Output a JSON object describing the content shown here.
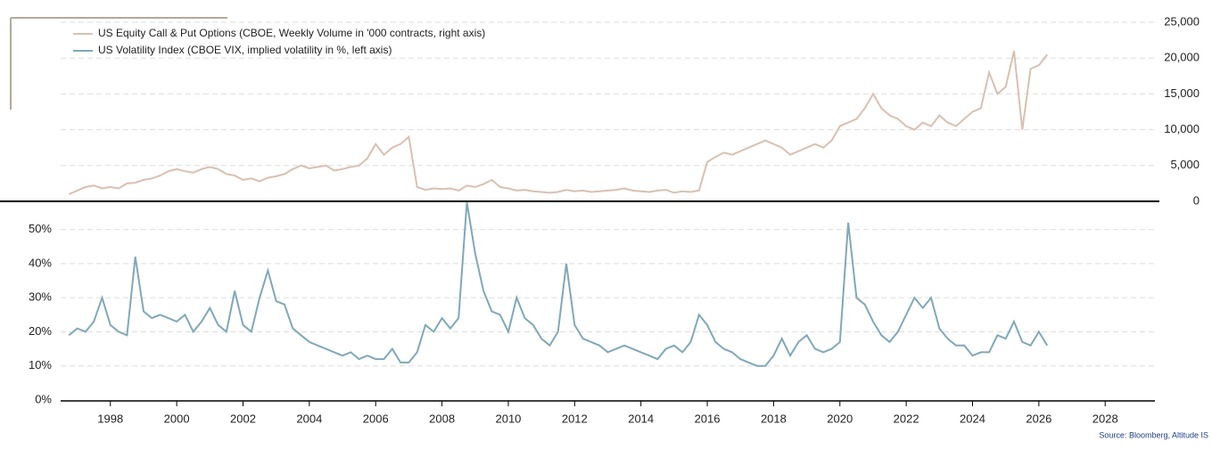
{
  "chart_data": {
    "type": "line",
    "source": "Source: Bloomberg, Altitude IS",
    "x": [
      1996.75,
      1997,
      1997.25,
      1997.5,
      1997.75,
      1998,
      1998.25,
      1998.5,
      1998.75,
      1999,
      1999.25,
      1999.5,
      1999.75,
      2000,
      2000.25,
      2000.5,
      2000.75,
      2001,
      2001.25,
      2001.5,
      2001.75,
      2002,
      2002.25,
      2002.5,
      2002.75,
      2003,
      2003.25,
      2003.5,
      2003.75,
      2004,
      2004.25,
      2004.5,
      2004.75,
      2005,
      2005.25,
      2005.5,
      2005.75,
      2006,
      2006.25,
      2006.5,
      2006.75,
      2007,
      2007.25,
      2007.5,
      2007.75,
      2008,
      2008.25,
      2008.5,
      2008.75,
      2009,
      2009.25,
      2009.5,
      2009.75,
      2010,
      2010.25,
      2010.5,
      2010.75,
      2011,
      2011.25,
      2011.5,
      2011.75,
      2012,
      2012.25,
      2012.5,
      2012.75,
      2013,
      2013.25,
      2013.5,
      2013.75,
      2014,
      2014.25,
      2014.5,
      2014.75,
      2015,
      2015.25,
      2015.5,
      2015.75,
      2016,
      2016.25,
      2016.5,
      2016.75,
      2017,
      2017.25,
      2017.5,
      2017.75,
      2018,
      2018.25,
      2018.5,
      2018.75,
      2019,
      2019.25,
      2019.5,
      2019.75,
      2020,
      2020.25,
      2020.5,
      2020.75,
      2021,
      2021.25,
      2021.5,
      2021.75,
      2022,
      2022.25,
      2022.5,
      2022.75,
      2023,
      2023.25,
      2023.5,
      2023.75,
      2024,
      2024.25,
      2024.5,
      2024.75,
      2025,
      2025.25,
      2025.5,
      2025.75,
      2026,
      2026.25
    ],
    "series": [
      {
        "name": "US Equity Call & Put Options (CBOE, Weekly Volume in '000 contracts, right axis)",
        "color": "#d9c0b2",
        "axis": "y2",
        "values": [
          1000,
          1500,
          2000,
          2200,
          1800,
          2000,
          1800,
          2500,
          2600,
          3000,
          3200,
          3600,
          4200,
          4500,
          4200,
          4000,
          4500,
          4800,
          4500,
          3800,
          3600,
          3000,
          3200,
          2800,
          3300,
          3500,
          3800,
          4500,
          5000,
          4600,
          4800,
          5000,
          4300,
          4500,
          4800,
          5000,
          6000,
          8000,
          6500,
          7500,
          8000,
          9000,
          2000,
          1600,
          1800,
          1700,
          1800,
          1500,
          2200,
          2000,
          2400,
          3000,
          2000,
          1800,
          1500,
          1600,
          1400,
          1300,
          1200,
          1300,
          1600,
          1400,
          1500,
          1300,
          1400,
          1500,
          1600,
          1800,
          1500,
          1400,
          1300,
          1500,
          1600,
          1200,
          1400,
          1300,
          1500,
          5500,
          6200,
          6800,
          6500,
          7000,
          7500,
          8000,
          8500,
          8000,
          7500,
          6500,
          7000,
          7500,
          8000,
          7500,
          8500,
          10500,
          11000,
          11500,
          13000,
          15000,
          13000,
          12000,
          11500,
          10500,
          10000,
          11000,
          10500,
          12000,
          11000,
          10500,
          11500,
          12500,
          13000,
          18000,
          15000,
          16000,
          21000,
          10000,
          18500,
          19000,
          20500
        ]
      },
      {
        "name": "US Volatility Index (CBOE VIX, implied volatility in %, left axis)",
        "color": "#80a8b9",
        "values": [
          19,
          21,
          20,
          23,
          30,
          22,
          20,
          19,
          42,
          26,
          24,
          25,
          24,
          23,
          25,
          20,
          23,
          27,
          22,
          20,
          32,
          22,
          20,
          30,
          38,
          29,
          28,
          21,
          19,
          17,
          16,
          15,
          14,
          13,
          14,
          12,
          13,
          12,
          12,
          15,
          11,
          11,
          14,
          22,
          20,
          24,
          21,
          24,
          58,
          43,
          32,
          26,
          25,
          20,
          30,
          24,
          22,
          18,
          16,
          20,
          40,
          22,
          18,
          17,
          16,
          14,
          15,
          16,
          15,
          14,
          13,
          12,
          15,
          16,
          14,
          17,
          25,
          22,
          17,
          15,
          14,
          12,
          11,
          10,
          10,
          13,
          18,
          13,
          17,
          19,
          15,
          14,
          15,
          17,
          52,
          30,
          28,
          23,
          19,
          17,
          20,
          25,
          30,
          27,
          30,
          21,
          18,
          16,
          16,
          13,
          14,
          14,
          19,
          18,
          23,
          17,
          16,
          20,
          16
        ]
      }
    ],
    "xlim": [
      1996.5,
      2029.5
    ],
    "xticks": [
      1998,
      2000,
      2002,
      2004,
      2006,
      2008,
      2010,
      2012,
      2014,
      2016,
      2018,
      2020,
      2022,
      2024,
      2026,
      2028
    ],
    "ylim": [
      0,
      58
    ],
    "yticks": [
      {
        "value": 0,
        "label": "0%"
      },
      {
        "value": 10,
        "label": "10%"
      },
      {
        "value": 20,
        "label": "20%"
      },
      {
        "value": 30,
        "label": "30%"
      },
      {
        "value": 40,
        "label": "40%"
      },
      {
        "value": 50,
        "label": "50%"
      }
    ],
    "y2lim": [
      0,
      25000
    ],
    "y2ticks": [
      0,
      {
        "value": 5000,
        "label": "5,000"
      },
      {
        "value": 10000,
        "label": "10,000"
      },
      {
        "value": 15000,
        "label": "15,000"
      },
      {
        "value": 20000,
        "label": "20,000"
      },
      {
        "value": 25000,
        "label": "25,000"
      }
    ],
    "grid": true
  }
}
